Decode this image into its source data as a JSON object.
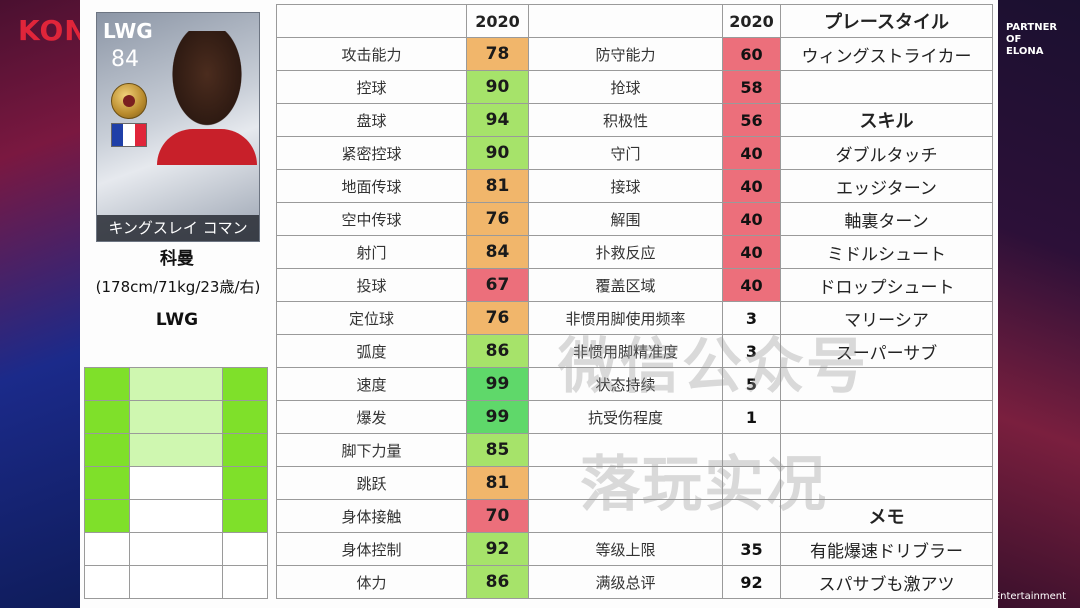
{
  "background": {
    "brand": "KON",
    "partner": "PARTNER OF\nELONA",
    "footer": "Entertainment"
  },
  "player": {
    "card_position": "LWG",
    "card_rating": "84",
    "card_name": "キングスレイ コマン",
    "name": "科曼",
    "info": "(178cm/71kg/23歳/右)",
    "position": "LWG",
    "flag_colors": [
      "#1f3fa8",
      "#ffffff",
      "#e0253a"
    ]
  },
  "header": {
    "year_a": "2020",
    "year_b": "2020",
    "playstyle": "プレースタイル"
  },
  "rows": [
    {
      "label_a": "攻击能力",
      "val_a": "78",
      "col_a": "o1",
      "label_b": "防守能力",
      "val_b": "60",
      "col_b": "r1",
      "side": "ウィングストライカー",
      "side_bold": false
    },
    {
      "label_a": "控球",
      "val_a": "90",
      "col_a": "g2",
      "label_b": "抢球",
      "val_b": "58",
      "col_b": "r1",
      "side": "",
      "side_bold": false
    },
    {
      "label_a": "盘球",
      "val_a": "94",
      "col_a": "g2",
      "label_b": "积极性",
      "val_b": "56",
      "col_b": "r1",
      "side": "スキル",
      "side_bold": true
    },
    {
      "label_a": "紧密控球",
      "val_a": "90",
      "col_a": "g2",
      "label_b": "守门",
      "val_b": "40",
      "col_b": "r1",
      "side": "ダブルタッチ",
      "side_bold": false
    },
    {
      "label_a": "地面传球",
      "val_a": "81",
      "col_a": "o1",
      "label_b": "接球",
      "val_b": "40",
      "col_b": "r1",
      "side": "エッジターン",
      "side_bold": false
    },
    {
      "label_a": "空中传球",
      "val_a": "76",
      "col_a": "o1",
      "label_b": "解围",
      "val_b": "40",
      "col_b": "r1",
      "side": "軸裏ターン",
      "side_bold": false
    },
    {
      "label_a": "射门",
      "val_a": "84",
      "col_a": "o1",
      "label_b": "扑救反应",
      "val_b": "40",
      "col_b": "r1",
      "side": "ミドルシュート",
      "side_bold": false
    },
    {
      "label_a": "投球",
      "val_a": "67",
      "col_a": "r1",
      "label_b": "覆盖区域",
      "val_b": "40",
      "col_b": "r1",
      "side": "ドロップシュート",
      "side_bold": false
    },
    {
      "label_a": "定位球",
      "val_a": "76",
      "col_a": "o1",
      "label_b": "非惯用脚使用频率",
      "val_b": "3",
      "col_b": "",
      "side": "マリーシア",
      "side_bold": false
    },
    {
      "label_a": "弧度",
      "val_a": "86",
      "col_a": "g2",
      "label_b": "非惯用脚精准度",
      "val_b": "3",
      "col_b": "",
      "side": "スーパーサブ",
      "side_bold": false
    },
    {
      "label_a": "速度",
      "val_a": "99",
      "col_a": "g1",
      "label_b": "状态持续",
      "val_b": "5",
      "col_b": "",
      "side": "",
      "side_bold": false
    },
    {
      "label_a": "爆发",
      "val_a": "99",
      "col_a": "g1",
      "label_b": "抗受伤程度",
      "val_b": "1",
      "col_b": "",
      "side": "",
      "side_bold": false
    },
    {
      "label_a": "脚下力量",
      "val_a": "85",
      "col_a": "g2",
      "label_b": "",
      "val_b": "",
      "col_b": "",
      "side": "",
      "side_bold": false
    },
    {
      "label_a": "跳跃",
      "val_a": "81",
      "col_a": "o1",
      "label_b": "",
      "val_b": "",
      "col_b": "",
      "side": "",
      "side_bold": false
    },
    {
      "label_a": "身体接触",
      "val_a": "70",
      "col_a": "r1",
      "label_b": "",
      "val_b": "",
      "col_b": "",
      "side": "メモ",
      "side_bold": true
    },
    {
      "label_a": "身体控制",
      "val_a": "92",
      "col_a": "g2",
      "label_b": "等级上限",
      "val_b": "35",
      "col_b": "",
      "side": "有能爆速ドリブラー",
      "side_bold": false
    },
    {
      "label_a": "体力",
      "val_a": "86",
      "col_a": "g2",
      "label_b": "满级总评",
      "val_b": "92",
      "col_b": "",
      "side": "スパサブも激アツ",
      "side_bold": false
    }
  ],
  "watermark": {
    "line1": "微信公众号",
    "line2": "落玩实况"
  }
}
